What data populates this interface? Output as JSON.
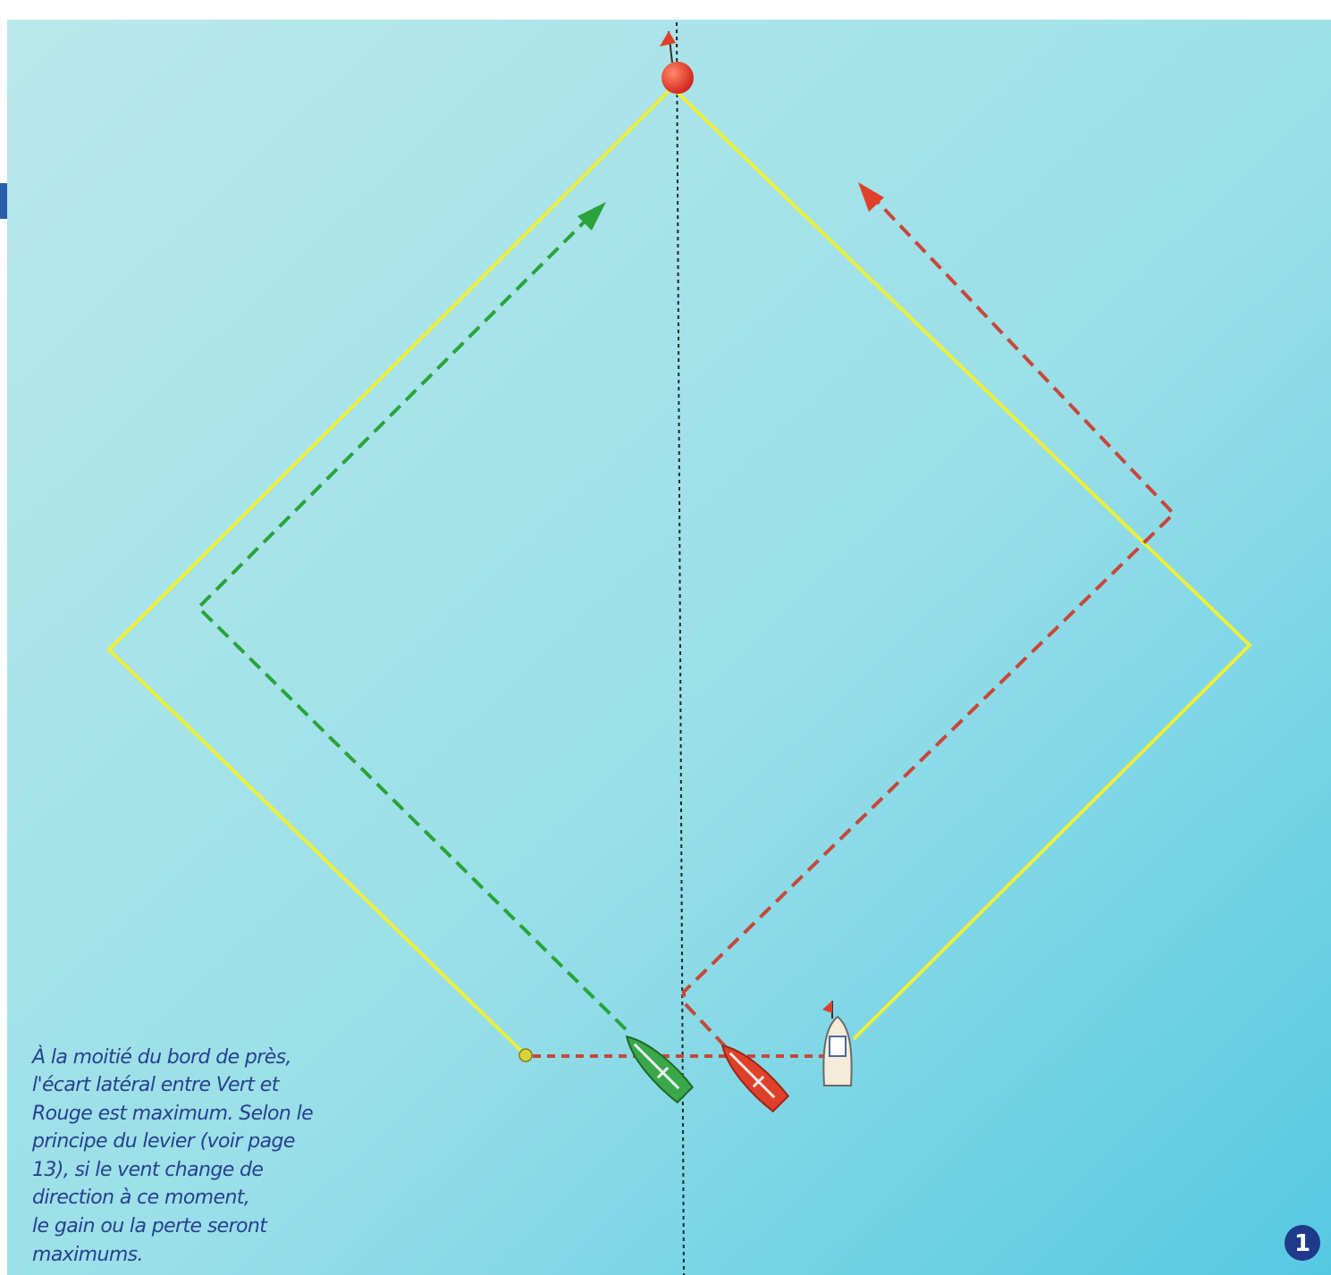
{
  "caption": {
    "lines": [
      "À la moitié du bord de près,",
      "l'écart latéral entre Vert et",
      "Rouge est maximum. Selon le",
      "principe du levier (voir page",
      "13), si le vent change de",
      "direction à ce moment,",
      "le gain ou la perte seront",
      "maximums."
    ]
  },
  "figure_number": "1"
}
